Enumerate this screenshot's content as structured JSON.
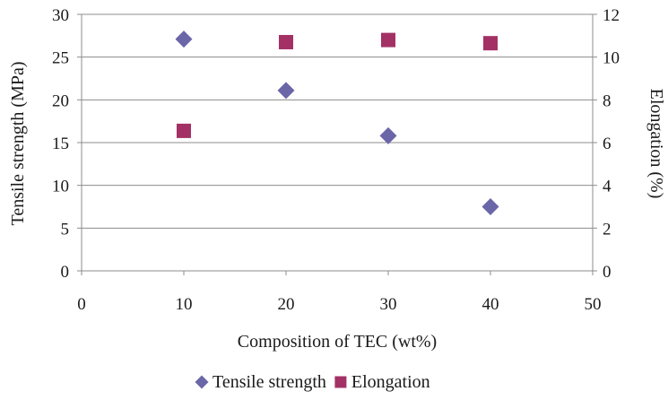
{
  "chart_data": {
    "type": "scatter",
    "xlabel": "Composition of TEC (wt%)",
    "ylabel": "Tensile strength (MPa)",
    "y2label": "Elongation (%)",
    "xlim": [
      0,
      50
    ],
    "ylim": [
      0,
      30
    ],
    "y2lim": [
      0,
      12
    ],
    "x_ticks": [
      0,
      10,
      20,
      30,
      40,
      50
    ],
    "y_ticks": [
      0,
      5,
      10,
      15,
      20,
      25,
      30
    ],
    "y2_ticks": [
      0,
      2,
      4,
      6,
      8,
      10,
      12
    ],
    "grid": true,
    "legend_position": "bottom",
    "series": [
      {
        "name": "Tensile strength",
        "axis": "left",
        "marker": "diamond",
        "color": "#6a66a8",
        "x": [
          10,
          20,
          30,
          40
        ],
        "y": [
          27.1,
          21.1,
          15.8,
          7.5
        ]
      },
      {
        "name": "Elongation",
        "axis": "right",
        "marker": "square",
        "color": "#a33165",
        "x": [
          10,
          20,
          30,
          40
        ],
        "y": [
          6.55,
          10.7,
          10.8,
          10.65
        ]
      }
    ]
  }
}
